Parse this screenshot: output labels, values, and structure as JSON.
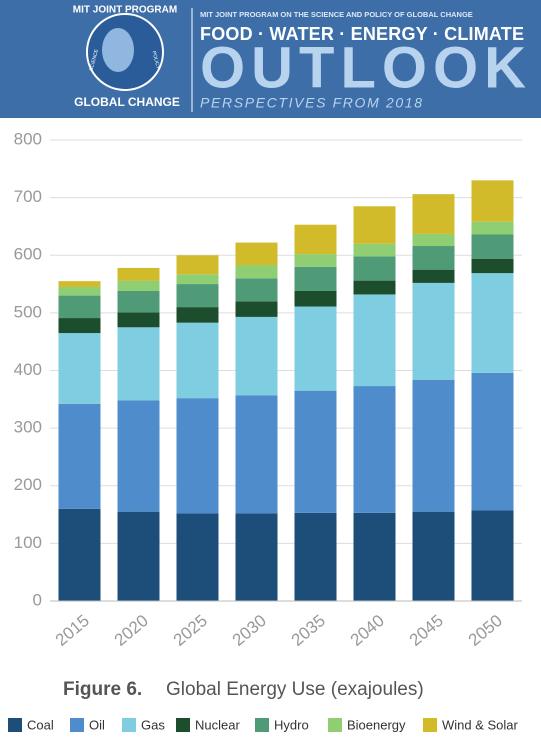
{
  "header": {
    "logo_top": "MIT JOINT PROGRAM",
    "logo_left": "SCIENCE",
    "logo_right": "POLICY",
    "logo_bottom": "GLOBAL CHANGE",
    "kicker": "MIT JOINT PROGRAM ON THE SCIENCE AND POLICY OF GLOBAL CHANGE",
    "topics": "FOOD · WATER · ENERGY · CLIMATE",
    "title": "OUTLOOK",
    "subtitle": "PERSPECTIVES FROM 2018"
  },
  "chart_data": {
    "type": "bar",
    "stacked": true,
    "figure_label": "Figure 6.",
    "title": "Global Energy Use (exajoules)",
    "categories": [
      "2015",
      "2020",
      "2025",
      "2030",
      "2035",
      "2040",
      "2045",
      "2050"
    ],
    "series": [
      {
        "name": "Coal",
        "color": "#1d4e7a",
        "values": [
          160,
          155,
          152,
          152,
          153,
          153,
          155,
          157
        ]
      },
      {
        "name": "Oil",
        "color": "#4e8ccc",
        "values": [
          182,
          193,
          200,
          205,
          212,
          220,
          229,
          239
        ]
      },
      {
        "name": "Gas",
        "color": "#7ecde0",
        "values": [
          123,
          127,
          131,
          136,
          146,
          159,
          168,
          173
        ]
      },
      {
        "name": "Nuclear",
        "color": "#1c4d2c",
        "values": [
          26,
          26,
          27,
          27,
          27,
          24,
          23,
          25
        ]
      },
      {
        "name": "Hydro",
        "color": "#4f9a77",
        "values": [
          39,
          37,
          40,
          40,
          42,
          42,
          41,
          42
        ]
      },
      {
        "name": "Bioenergy",
        "color": "#8fce72",
        "values": [
          15,
          18,
          17,
          23,
          22,
          22,
          21,
          22
        ]
      },
      {
        "name": "Wind & Solar",
        "color": "#d1bb2a",
        "values": [
          10,
          22,
          33,
          39,
          51,
          65,
          69,
          72
        ]
      }
    ],
    "ylim": [
      0,
      800
    ],
    "yticks": [
      0,
      100,
      200,
      300,
      400,
      500,
      600,
      700,
      800
    ],
    "grid": true
  }
}
